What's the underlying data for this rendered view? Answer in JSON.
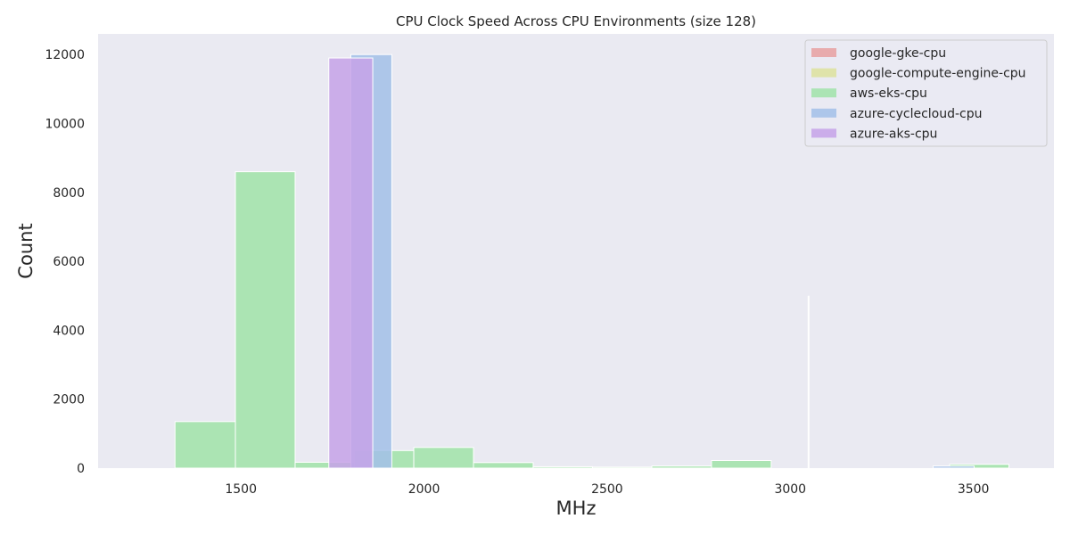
{
  "chart_data": {
    "type": "bar",
    "title": "CPU Clock Speed Across CPU Environments (size 128)",
    "xlabel": "MHz",
    "ylabel": "Count",
    "xlim": [
      1110,
      3720
    ],
    "ylim": [
      0,
      12600
    ],
    "xticks": [
      1500,
      2000,
      2500,
      3000,
      3500
    ],
    "yticks": [
      0,
      2000,
      4000,
      6000,
      8000,
      10000,
      12000
    ],
    "grid": false,
    "legend_position": "top-right",
    "series": [
      {
        "name": "google-gke-cpu",
        "color": "#e8a0a0",
        "bins": []
      },
      {
        "name": "google-compute-engine-cpu",
        "color": "#dde29c",
        "bins": []
      },
      {
        "name": "aws-eks-cpu",
        "color": "#a0e3a8",
        "bins": [
          {
            "x0": 1320,
            "x1": 1485,
            "count": 1350
          },
          {
            "x0": 1485,
            "x1": 1648,
            "count": 8600
          },
          {
            "x0": 1648,
            "x1": 1810,
            "count": 170
          },
          {
            "x0": 1810,
            "x1": 1972,
            "count": 510
          },
          {
            "x0": 1972,
            "x1": 2135,
            "count": 600
          },
          {
            "x0": 2135,
            "x1": 2298,
            "count": 160
          },
          {
            "x0": 2298,
            "x1": 2460,
            "count": 40
          },
          {
            "x0": 2460,
            "x1": 2622,
            "count": 30
          },
          {
            "x0": 2622,
            "x1": 2785,
            "count": 60
          },
          {
            "x0": 2785,
            "x1": 2948,
            "count": 220
          },
          {
            "x0": 3435,
            "x1": 3597,
            "count": 110
          }
        ]
      },
      {
        "name": "azure-cyclecloud-cpu",
        "color": "#a2bfe8",
        "bins": [
          {
            "x0": 1800,
            "x1": 1912,
            "count": 12000
          },
          {
            "x0": 3390,
            "x1": 3502,
            "count": 60
          }
        ]
      },
      {
        "name": "azure-aks-cpu",
        "color": "#c6a2e8",
        "bins": [
          {
            "x0": 1740,
            "x1": 1860,
            "count": 11900
          }
        ]
      }
    ],
    "annotations": [
      {
        "type": "vline",
        "x": 3050,
        "count": 5000,
        "color": "#ffffff"
      }
    ]
  }
}
